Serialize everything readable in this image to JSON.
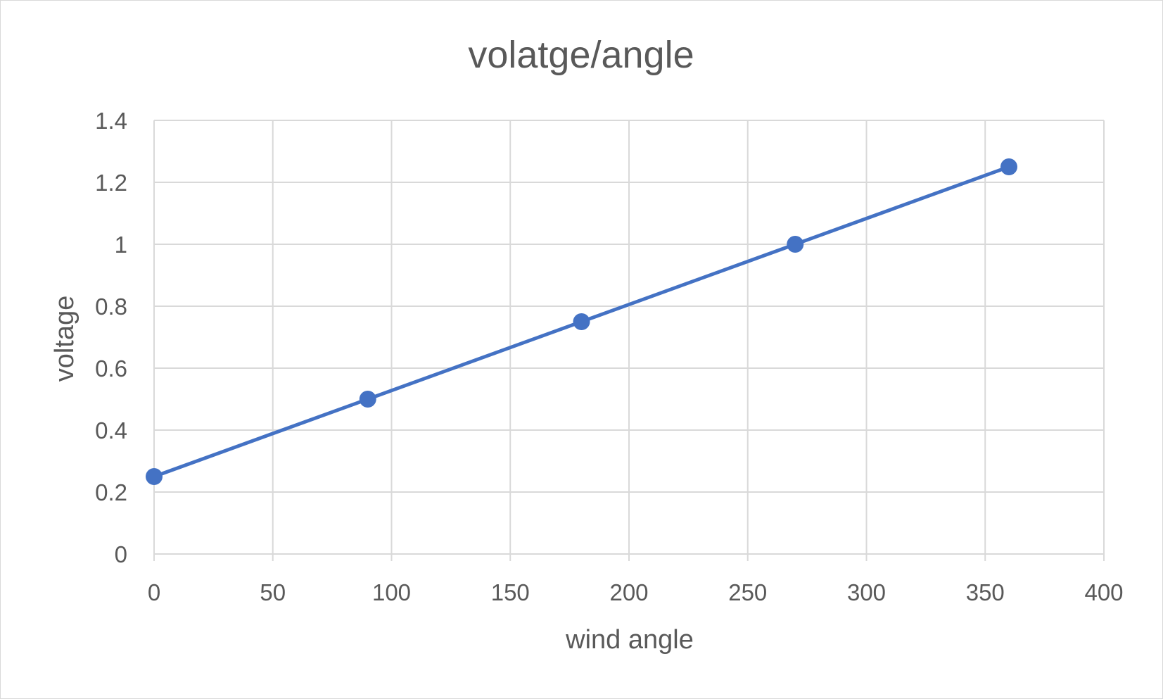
{
  "chart_data": {
    "type": "scatter",
    "title": "volatge/angle",
    "xlabel": "wind angle",
    "ylabel": "voltage",
    "xlim": [
      0,
      400
    ],
    "ylim": [
      0,
      1.4
    ],
    "xticks": [
      "0",
      "50",
      "100",
      "150",
      "200",
      "250",
      "300",
      "350",
      "400"
    ],
    "yticks": [
      "0",
      "0.2",
      "0.4",
      "0.6",
      "0.8",
      "1",
      "1.2",
      "1.4"
    ],
    "grid": true,
    "legend": "none",
    "series": [
      {
        "color": "#4472C4",
        "marker": "circle",
        "connected": true,
        "points": [
          {
            "x": 0,
            "y": 0.25
          },
          {
            "x": 90,
            "y": 0.5
          },
          {
            "x": 180,
            "y": 0.75
          },
          {
            "x": 270,
            "y": 1.0
          },
          {
            "x": 360,
            "y": 1.25
          }
        ]
      }
    ]
  }
}
